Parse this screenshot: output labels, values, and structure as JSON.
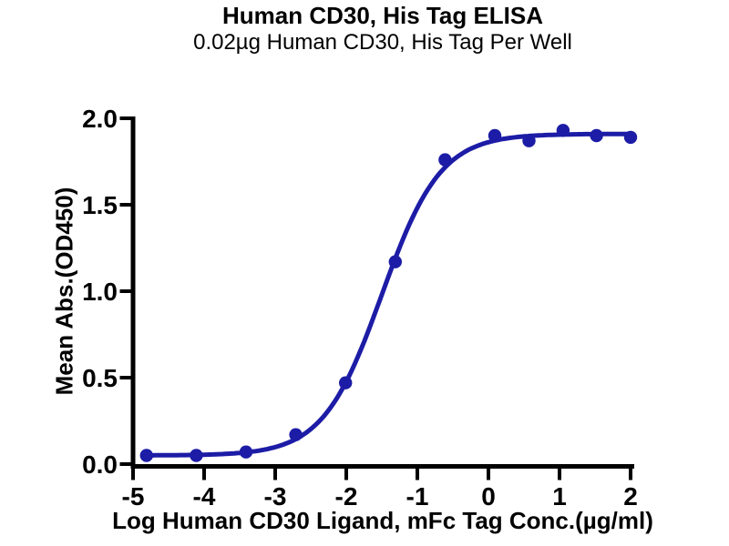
{
  "chart_data": {
    "type": "scatter",
    "title": "Human CD30, His Tag ELISA",
    "subtitle": "0.02µg Human CD30, His Tag Per Well",
    "xlabel": "Log Human CD30 Ligand, mFc Tag Conc.(µg/ml)",
    "ylabel": "Mean Abs.(OD450)",
    "xlim": [
      -5,
      2
    ],
    "ylim": [
      0,
      2.0
    ],
    "grid": false,
    "legend": null,
    "x_ticks": [
      {
        "value": -5,
        "label": "-5"
      },
      {
        "value": -4,
        "label": "-4"
      },
      {
        "value": -3,
        "label": "-3"
      },
      {
        "value": -2,
        "label": "-2"
      },
      {
        "value": -1,
        "label": "-1"
      },
      {
        "value": 0,
        "label": "0"
      },
      {
        "value": 1,
        "label": "1"
      },
      {
        "value": 2,
        "label": "2"
      }
    ],
    "y_ticks": [
      {
        "value": 0.0,
        "label": "0.0"
      },
      {
        "value": 0.5,
        "label": "0.5"
      },
      {
        "value": 1.0,
        "label": "1.0"
      },
      {
        "value": 1.5,
        "label": "1.5"
      },
      {
        "value": 2.0,
        "label": "2.0"
      }
    ],
    "series": [
      {
        "points": [
          [
            -4.81,
            0.05
          ],
          [
            -4.11,
            0.05
          ],
          [
            -3.41,
            0.07
          ],
          [
            -2.71,
            0.17
          ],
          [
            -2.01,
            0.47
          ],
          [
            -1.31,
            1.17
          ],
          [
            -0.61,
            1.76
          ],
          [
            0.09,
            1.9
          ],
          [
            0.57,
            1.87
          ],
          [
            1.05,
            1.93
          ],
          [
            1.52,
            1.9
          ],
          [
            2.0,
            1.89
          ]
        ],
        "fit_curve": {
          "model": "4PL",
          "bottom": 0.05,
          "top": 1.91,
          "log_ec50": -1.5,
          "hill_slope": 1.05
        }
      }
    ],
    "colors": {
      "series": "#1c1ca6",
      "axis": "#000000",
      "background": "#ffffff"
    }
  }
}
